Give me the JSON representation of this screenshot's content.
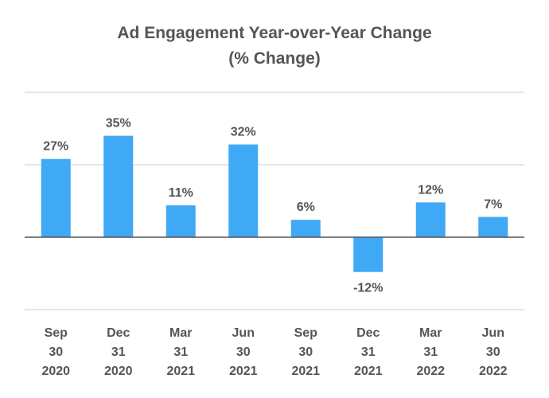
{
  "chart_data": {
    "type": "bar",
    "title": "Ad Engagement Year-over-Year Change",
    "subtitle": "(% Change)",
    "categories": [
      [
        "Sep",
        "30",
        "2020"
      ],
      [
        "Dec",
        "31",
        "2020"
      ],
      [
        "Mar",
        "31",
        "2021"
      ],
      [
        "Jun",
        "30",
        "2021"
      ],
      [
        "Sep",
        "30",
        "2021"
      ],
      [
        "Dec",
        "31",
        "2021"
      ],
      [
        "Mar",
        "31",
        "2022"
      ],
      [
        "Jun",
        "30",
        "2022"
      ]
    ],
    "values": [
      27,
      35,
      11,
      32,
      6,
      -12,
      12,
      7
    ],
    "value_labels": [
      "27%",
      "35%",
      "11%",
      "32%",
      "6%",
      "-12%",
      "12%",
      "7%"
    ],
    "ylim": [
      -25,
      50
    ],
    "gridlines": [
      -25,
      0,
      25,
      50
    ],
    "xlabel": "",
    "ylabel": "",
    "bar_color": "#3fa9f5",
    "text_color": "#555555",
    "grid_color": "#dddddd"
  }
}
